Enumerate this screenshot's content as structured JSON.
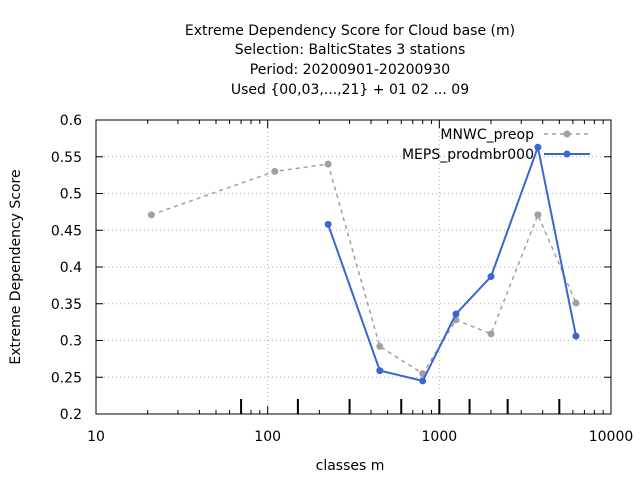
{
  "chart_data": {
    "type": "line",
    "title_lines": [
      "Extreme Dependency Score  for Cloud base (m)",
      "Selection: BalticStates      3 stations",
      "Period: 20200901-20200930",
      "Used {00,03,...,21} + 01 02 ... 09"
    ],
    "xlabel": "classes m",
    "ylabel": "Extreme Dependency Score",
    "x_scale": "log",
    "xlim": [
      10,
      10000
    ],
    "ylim": [
      0.2,
      0.6
    ],
    "x_ticks": [
      10,
      100,
      1000,
      10000
    ],
    "x_tick_labels": [
      "10",
      "100",
      "1000",
      "10000"
    ],
    "y_ticks": [
      0.2,
      0.25,
      0.3,
      0.35,
      0.4,
      0.45,
      0.5,
      0.55,
      0.6
    ],
    "y_tick_labels": [
      "0.2",
      "0.25",
      "0.3",
      "0.35",
      "0.4",
      "0.45",
      "0.5",
      "0.55",
      "0.6"
    ],
    "grid": true,
    "legend_position": "top-right",
    "class_boundaries": [
      70,
      150,
      300,
      600,
      1000,
      1500,
      2500,
      5000
    ],
    "series": [
      {
        "name": "MNWC_preop",
        "color": "#a0a0a0",
        "dashed": true,
        "x": [
          21,
          110,
          225,
          450,
          800,
          1250,
          2000,
          3750,
          6250
        ],
        "values": [
          0.471,
          0.53,
          0.54,
          0.292,
          0.255,
          0.328,
          0.309,
          0.471,
          0.351
        ]
      },
      {
        "name": "MEPS_prodmbr000",
        "color": "#3a66d4",
        "dashed": false,
        "x": [
          225,
          450,
          800,
          1250,
          2000,
          3750,
          6250
        ],
        "values": [
          0.458,
          0.259,
          0.245,
          0.336,
          0.387,
          0.563,
          0.306
        ]
      }
    ]
  }
}
